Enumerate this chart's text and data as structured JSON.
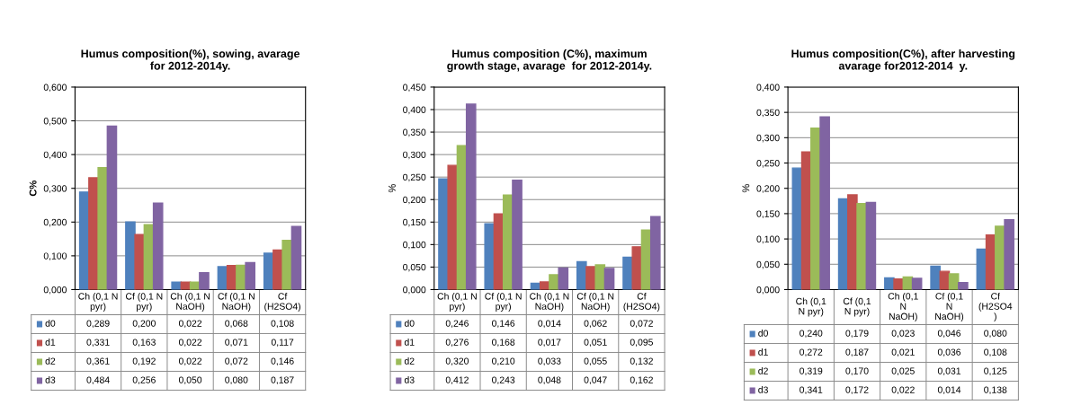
{
  "chart_data": [
    {
      "type": "bar",
      "title": "Humus composition(%), sowing, avarage\nfor 2012-2014y.",
      "ylabel": "C%",
      "categories": [
        "Ch (0,1 N\npyr)",
        "Cf (0,1 N\npyr)",
        "Ch (0,1 N\nNaOH)",
        "Cf (0,1 N\nNaOH)",
        "Cf\n(H2SO4)"
      ],
      "ylim": [
        0,
        0.6
      ],
      "yticks": [
        {
          "value": 0,
          "label": "0,000"
        },
        {
          "value": 0.1,
          "label": "0,100"
        },
        {
          "value": 0.2,
          "label": "0,200"
        },
        {
          "value": 0.3,
          "label": "0,300"
        },
        {
          "value": 0.4,
          "label": "0,400"
        },
        {
          "value": 0.5,
          "label": "0,500"
        },
        {
          "value": 0.6,
          "label": "0,600"
        }
      ],
      "grid": "y",
      "legend": "bottom",
      "series": [
        {
          "name": "d0",
          "color": "#4f81bd",
          "values": [
            0.289,
            0.2,
            0.022,
            0.068,
            0.108
          ],
          "value_labels": [
            "0,289",
            "0,200",
            "0,022",
            "0,068",
            "0,108"
          ]
        },
        {
          "name": "d1",
          "color": "#c0504d",
          "values": [
            0.331,
            0.163,
            0.022,
            0.071,
            0.117
          ],
          "value_labels": [
            "0,331",
            "0,163",
            "0,022",
            "0,071",
            "0,117"
          ]
        },
        {
          "name": "d2",
          "color": "#9bbb59",
          "values": [
            0.361,
            0.192,
            0.022,
            0.072,
            0.146
          ],
          "value_labels": [
            "0,361",
            "0,192",
            "0,022",
            "0,072",
            "0,146"
          ]
        },
        {
          "name": "d3",
          "color": "#8064a2",
          "values": [
            0.484,
            0.256,
            0.05,
            0.08,
            0.187
          ],
          "value_labels": [
            "0,484",
            "0,256",
            "0,050",
            "0,080",
            "0,187"
          ]
        }
      ]
    },
    {
      "type": "bar",
      "title": "Humus composition (C%), maximum\ngrowth stage, avarage  for 2012-2014y.",
      "ylabel": "%",
      "categories": [
        "Ch (0,1 N\npyr)",
        "Cf (0,1 N\npyr)",
        "Ch (0,1 N\nNaOH)",
        "Cf (0,1 N\nNaOH)",
        "Cf\n(H2SO4)"
      ],
      "ylim": [
        0,
        0.45
      ],
      "yticks": [
        {
          "value": 0,
          "label": "0,000"
        },
        {
          "value": 0.05,
          "label": "0,050"
        },
        {
          "value": 0.1,
          "label": "0,100"
        },
        {
          "value": 0.15,
          "label": "0,150"
        },
        {
          "value": 0.2,
          "label": "0,200"
        },
        {
          "value": 0.25,
          "label": "0,250"
        },
        {
          "value": 0.3,
          "label": "0,300"
        },
        {
          "value": 0.35,
          "label": "0,350"
        },
        {
          "value": 0.4,
          "label": "0,400"
        },
        {
          "value": 0.45,
          "label": "0,450"
        }
      ],
      "grid": "y",
      "legend": "bottom",
      "series": [
        {
          "name": "d0",
          "color": "#4f81bd",
          "values": [
            0.246,
            0.146,
            0.014,
            0.062,
            0.072
          ],
          "value_labels": [
            "0,246",
            "0,146",
            "0,014",
            "0,062",
            "0,072"
          ]
        },
        {
          "name": "d1",
          "color": "#c0504d",
          "values": [
            0.276,
            0.168,
            0.017,
            0.051,
            0.095
          ],
          "value_labels": [
            "0,276",
            "0,168",
            "0,017",
            "0,051",
            "0,095"
          ]
        },
        {
          "name": "d2",
          "color": "#9bbb59",
          "values": [
            0.32,
            0.21,
            0.033,
            0.055,
            0.132
          ],
          "value_labels": [
            "0,320",
            "0,210",
            "0,033",
            "0,055",
            "0,132"
          ]
        },
        {
          "name": "d3",
          "color": "#8064a2",
          "values": [
            0.412,
            0.243,
            0.048,
            0.047,
            0.162
          ],
          "value_labels": [
            "0,412",
            "0,243",
            "0,048",
            "0,047",
            "0,162"
          ]
        }
      ]
    },
    {
      "type": "bar",
      "title": "Humus composition(C%), after harvesting\navarage for2012-2014  y.",
      "ylabel": "%",
      "categories": [
        "Ch (0,1\nN pyr)",
        "Cf (0,1\nN pyr)",
        "Ch (0,1\nN\nNaOH)",
        "Cf (0,1\nN\nNaOH)",
        "Cf\n(H2SO4\n)"
      ],
      "ylim": [
        0,
        0.4
      ],
      "yticks": [
        {
          "value": 0,
          "label": "0,000"
        },
        {
          "value": 0.05,
          "label": "0,050"
        },
        {
          "value": 0.1,
          "label": "0,100"
        },
        {
          "value": 0.15,
          "label": "0,150"
        },
        {
          "value": 0.2,
          "label": "0,200"
        },
        {
          "value": 0.25,
          "label": "0,250"
        },
        {
          "value": 0.3,
          "label": "0,300"
        },
        {
          "value": 0.35,
          "label": "0,350"
        },
        {
          "value": 0.4,
          "label": "0,400"
        }
      ],
      "grid": "y",
      "legend": "bottom",
      "series": [
        {
          "name": "d0",
          "color": "#4f81bd",
          "values": [
            0.24,
            0.179,
            0.023,
            0.046,
            0.08
          ],
          "value_labels": [
            "0,240",
            "0,179",
            "0,023",
            "0,046",
            "0,080"
          ]
        },
        {
          "name": "d1",
          "color": "#c0504d",
          "values": [
            0.272,
            0.187,
            0.021,
            0.036,
            0.108
          ],
          "value_labels": [
            "0,272",
            "0,187",
            "0,021",
            "0,036",
            "0,108"
          ]
        },
        {
          "name": "d2",
          "color": "#9bbb59",
          "values": [
            0.319,
            0.17,
            0.025,
            0.031,
            0.125
          ],
          "value_labels": [
            "0,319",
            "0,170",
            "0,025",
            "0,031",
            "0,125"
          ]
        },
        {
          "name": "d3",
          "color": "#8064a2",
          "values": [
            0.341,
            0.172,
            0.022,
            0.014,
            0.138
          ],
          "value_labels": [
            "0,341",
            "0,172",
            "0,022",
            "0,014",
            "0,138"
          ]
        }
      ]
    }
  ]
}
